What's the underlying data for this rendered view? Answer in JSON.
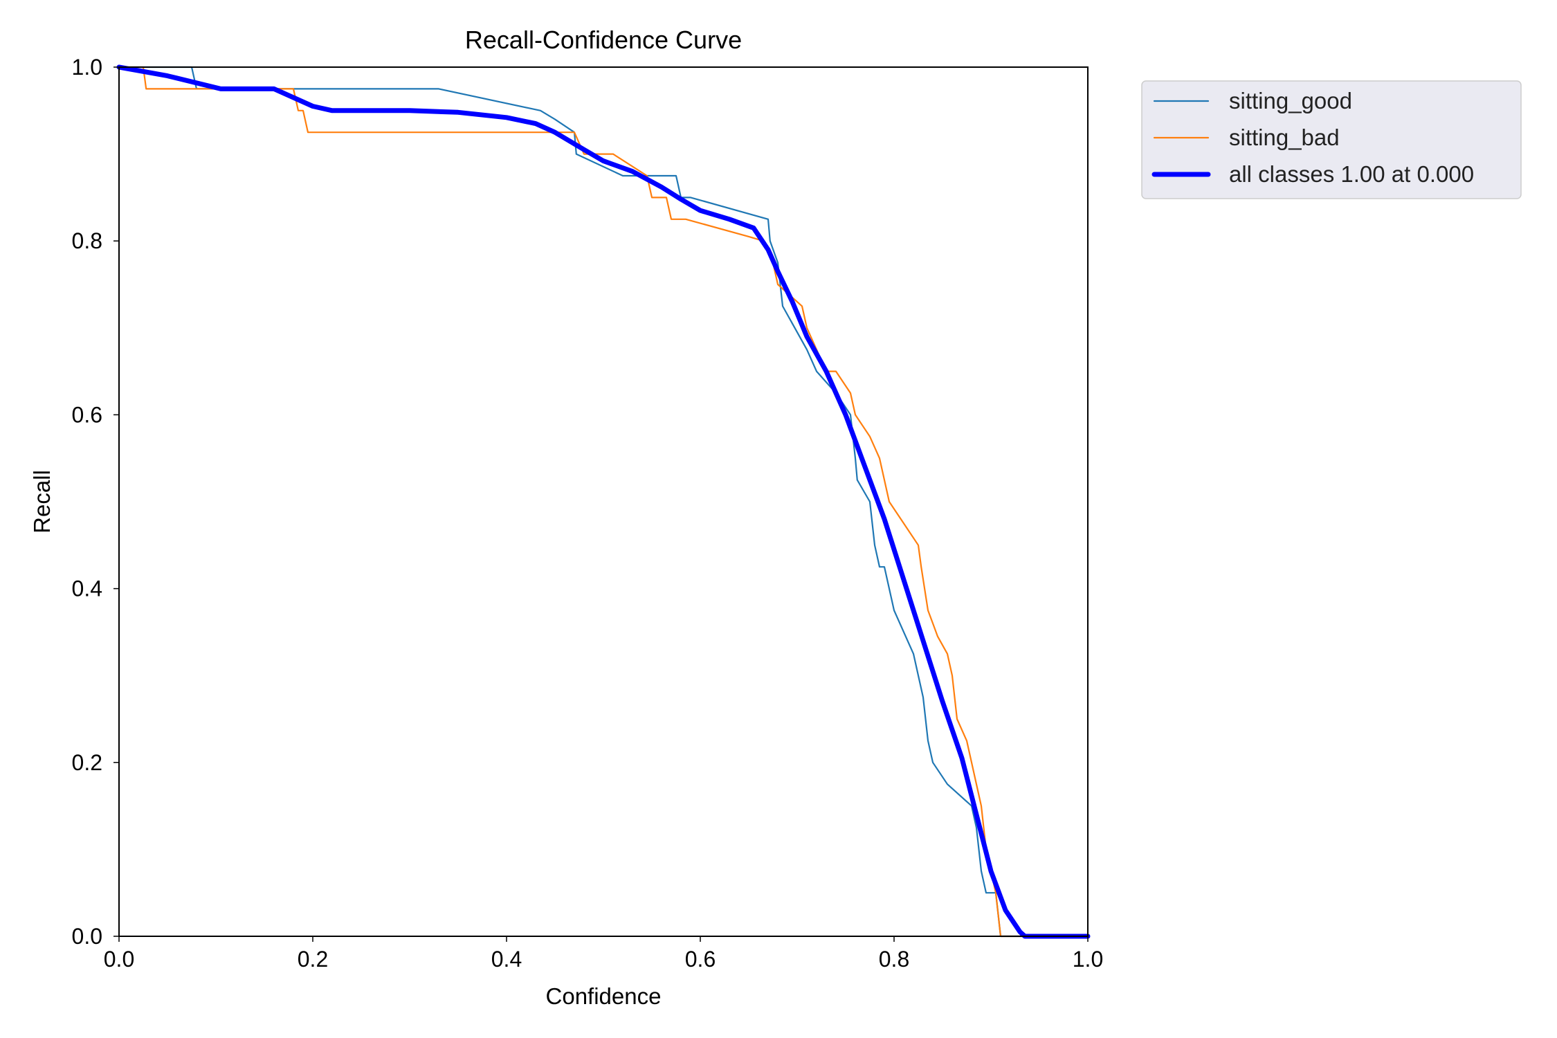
{
  "chart_data": {
    "type": "line",
    "title": "Recall-Confidence Curve",
    "xlabel": "Confidence",
    "ylabel": "Recall",
    "xlim": [
      0,
      1
    ],
    "ylim": [
      0,
      1
    ],
    "xticks": [
      "0.0",
      "0.2",
      "0.4",
      "0.6",
      "0.8",
      "1.0"
    ],
    "yticks": [
      "0.0",
      "0.2",
      "0.4",
      "0.6",
      "0.8",
      "1.0"
    ],
    "grid": false,
    "legend_position": "outside-top-right",
    "series": [
      {
        "name": "sitting_good",
        "color": "#1f77b4",
        "points": [
          [
            0,
            1
          ],
          [
            0.075,
            1
          ],
          [
            0.08,
            0.975
          ],
          [
            0.18,
            0.975
          ],
          [
            0.33,
            0.975
          ],
          [
            0.435,
            0.95
          ],
          [
            0.45,
            0.94
          ],
          [
            0.47,
            0.925
          ],
          [
            0.472,
            0.9
          ],
          [
            0.52,
            0.875
          ],
          [
            0.575,
            0.875
          ],
          [
            0.58,
            0.85
          ],
          [
            0.59,
            0.85
          ],
          [
            0.67,
            0.825
          ],
          [
            0.672,
            0.8
          ],
          [
            0.68,
            0.775
          ],
          [
            0.685,
            0.725
          ],
          [
            0.71,
            0.675
          ],
          [
            0.72,
            0.65
          ],
          [
            0.74,
            0.625
          ],
          [
            0.755,
            0.6
          ],
          [
            0.76,
            0.55
          ],
          [
            0.762,
            0.525
          ],
          [
            0.775,
            0.5
          ],
          [
            0.78,
            0.45
          ],
          [
            0.785,
            0.425
          ],
          [
            0.79,
            0.425
          ],
          [
            0.795,
            0.4
          ],
          [
            0.8,
            0.375
          ],
          [
            0.81,
            0.35
          ],
          [
            0.82,
            0.325
          ],
          [
            0.825,
            0.3
          ],
          [
            0.83,
            0.275
          ],
          [
            0.835,
            0.225
          ],
          [
            0.84,
            0.2
          ],
          [
            0.855,
            0.175
          ],
          [
            0.88,
            0.15
          ],
          [
            0.885,
            0.125
          ],
          [
            0.89,
            0.075
          ],
          [
            0.895,
            0.05
          ],
          [
            0.905,
            0.05
          ],
          [
            0.91,
            0
          ],
          [
            1,
            0
          ]
        ]
      },
      {
        "name": "sitting_bad",
        "color": "#ff7f0e",
        "points": [
          [
            0,
            1
          ],
          [
            0.025,
            1
          ],
          [
            0.028,
            0.975
          ],
          [
            0.18,
            0.975
          ],
          [
            0.185,
            0.95
          ],
          [
            0.19,
            0.95
          ],
          [
            0.195,
            0.925
          ],
          [
            0.3,
            0.925
          ],
          [
            0.47,
            0.925
          ],
          [
            0.48,
            0.9
          ],
          [
            0.51,
            0.9
          ],
          [
            0.545,
            0.875
          ],
          [
            0.55,
            0.85
          ],
          [
            0.565,
            0.85
          ],
          [
            0.57,
            0.825
          ],
          [
            0.585,
            0.825
          ],
          [
            0.65,
            0.805
          ],
          [
            0.665,
            0.8
          ],
          [
            0.675,
            0.775
          ],
          [
            0.68,
            0.75
          ],
          [
            0.69,
            0.74
          ],
          [
            0.705,
            0.725
          ],
          [
            0.71,
            0.7
          ],
          [
            0.73,
            0.65
          ],
          [
            0.74,
            0.65
          ],
          [
            0.755,
            0.625
          ],
          [
            0.76,
            0.6
          ],
          [
            0.775,
            0.575
          ],
          [
            0.785,
            0.55
          ],
          [
            0.79,
            0.525
          ],
          [
            0.795,
            0.5
          ],
          [
            0.81,
            0.475
          ],
          [
            0.825,
            0.45
          ],
          [
            0.828,
            0.425
          ],
          [
            0.835,
            0.375
          ],
          [
            0.84,
            0.36
          ],
          [
            0.845,
            0.345
          ],
          [
            0.855,
            0.325
          ],
          [
            0.86,
            0.3
          ],
          [
            0.865,
            0.25
          ],
          [
            0.875,
            0.225
          ],
          [
            0.88,
            0.2
          ],
          [
            0.885,
            0.175
          ],
          [
            0.89,
            0.15
          ],
          [
            0.895,
            0.1
          ],
          [
            0.9,
            0.075
          ],
          [
            0.905,
            0.05
          ],
          [
            0.91,
            0
          ],
          [
            1,
            0
          ]
        ]
      },
      {
        "name": "all classes 1.00 at 0.000",
        "color": "#0000ff",
        "points": [
          [
            0,
            1
          ],
          [
            0.05,
            0.99
          ],
          [
            0.105,
            0.975
          ],
          [
            0.16,
            0.975
          ],
          [
            0.2,
            0.955
          ],
          [
            0.22,
            0.95
          ],
          [
            0.3,
            0.95
          ],
          [
            0.35,
            0.948
          ],
          [
            0.4,
            0.942
          ],
          [
            0.43,
            0.935
          ],
          [
            0.45,
            0.925
          ],
          [
            0.48,
            0.905
          ],
          [
            0.5,
            0.892
          ],
          [
            0.53,
            0.88
          ],
          [
            0.56,
            0.862
          ],
          [
            0.58,
            0.848
          ],
          [
            0.6,
            0.835
          ],
          [
            0.63,
            0.825
          ],
          [
            0.655,
            0.815
          ],
          [
            0.67,
            0.79
          ],
          [
            0.68,
            0.765
          ],
          [
            0.695,
            0.73
          ],
          [
            0.71,
            0.69
          ],
          [
            0.73,
            0.65
          ],
          [
            0.75,
            0.6
          ],
          [
            0.77,
            0.54
          ],
          [
            0.79,
            0.48
          ],
          [
            0.81,
            0.41
          ],
          [
            0.83,
            0.34
          ],
          [
            0.85,
            0.27
          ],
          [
            0.87,
            0.205
          ],
          [
            0.885,
            0.14
          ],
          [
            0.9,
            0.075
          ],
          [
            0.915,
            0.03
          ],
          [
            0.93,
            0.005
          ],
          [
            0.935,
            0
          ],
          [
            1,
            0
          ]
        ]
      }
    ]
  }
}
